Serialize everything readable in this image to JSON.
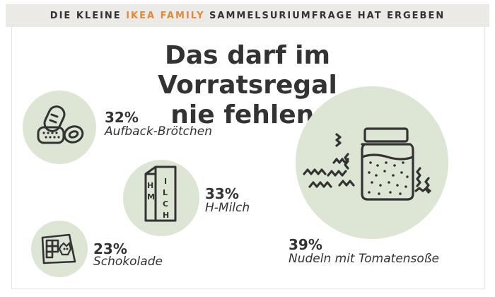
{
  "header": {
    "prefix": "DIE KLEINE",
    "highlight": "IKEA FAMILY",
    "suffix": "SAMMELSURIUMFRAGE HAT ERGEBEN",
    "accent_color": "#e08a3c"
  },
  "title": {
    "line1": "Das darf im Vorratsregal",
    "line2": "nie fehlen:"
  },
  "chart_data": {
    "type": "bubble",
    "unit": "%",
    "items": [
      {
        "label": "Aufback-Brötchen",
        "value": 32,
        "display": "32%",
        "icon": "bread-rolls-icon"
      },
      {
        "label": "H-Milch",
        "value": 33,
        "display": "33%",
        "icon": "milk-carton-icon"
      },
      {
        "label": "Schokolade",
        "value": 23,
        "display": "23%",
        "icon": "chocolate-bar-icon"
      },
      {
        "label": "Nudeln mit Tomatensoße",
        "value": 39,
        "display": "39%",
        "icon": "pasta-jar-icon"
      }
    ]
  },
  "colors": {
    "circle_fill": "#dde5d4",
    "text": "#333333"
  }
}
